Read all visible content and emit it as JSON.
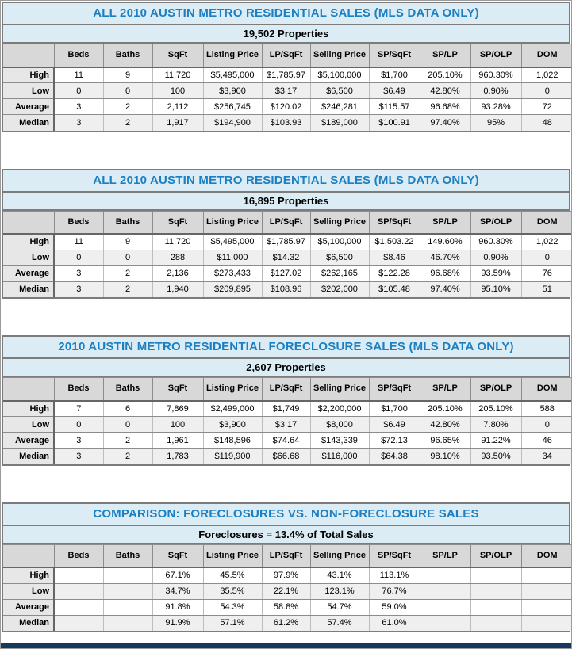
{
  "colors": {
    "title_text": "#1b7fc2",
    "banner_bg": "#dbecf4",
    "header_bg": "#d8d8d8",
    "alt_row_bg": "#efefef",
    "bottom_bar": "#17375d"
  },
  "columns": [
    "",
    "Beds",
    "Baths",
    "SqFt",
    "Listing Price",
    "LP/SqFt",
    "Selling Price",
    "SP/SqFt",
    "SP/LP",
    "SP/OLP",
    "DOM"
  ],
  "row_labels": [
    "High",
    "Low",
    "Average",
    "Median"
  ],
  "tables": [
    {
      "title": "ALL 2010 AUSTIN METRO RESIDENTIAL SALES (MLS DATA ONLY)",
      "subtitle": "19,502 Properties",
      "rows": [
        [
          "11",
          "9",
          "11,720",
          "$5,495,000",
          "$1,785.97",
          "$5,100,000",
          "$1,700",
          "205.10%",
          "960.30%",
          "1,022"
        ],
        [
          "0",
          "0",
          "100",
          "$3,900",
          "$3.17",
          "$6,500",
          "$6.49",
          "42.80%",
          "0.90%",
          "0"
        ],
        [
          "3",
          "2",
          "2,112",
          "$256,745",
          "$120.02",
          "$246,281",
          "$115.57",
          "96.68%",
          "93.28%",
          "72"
        ],
        [
          "3",
          "2",
          "1,917",
          "$194,900",
          "$103.93",
          "$189,000",
          "$100.91",
          "97.40%",
          "95%",
          "48"
        ]
      ]
    },
    {
      "title": "ALL 2010 AUSTIN METRO RESIDENTIAL SALES (MLS DATA ONLY)",
      "subtitle": "16,895 Properties",
      "rows": [
        [
          "11",
          "9",
          "11,720",
          "$5,495,000",
          "$1,785.97",
          "$5,100,000",
          "$1,503.22",
          "149.60%",
          "960.30%",
          "1,022"
        ],
        [
          "0",
          "0",
          "288",
          "$11,000",
          "$14.32",
          "$6,500",
          "$8.46",
          "46.70%",
          "0.90%",
          "0"
        ],
        [
          "3",
          "2",
          "2,136",
          "$273,433",
          "$127.02",
          "$262,165",
          "$122.28",
          "96.68%",
          "93.59%",
          "76"
        ],
        [
          "3",
          "2",
          "1,940",
          "$209,895",
          "$108.96",
          "$202,000",
          "$105.48",
          "97.40%",
          "95.10%",
          "51"
        ]
      ]
    },
    {
      "title": "2010 AUSTIN METRO RESIDENTIAL FORECLOSURE SALES (MLS DATA ONLY)",
      "subtitle": "2,607 Properties",
      "rows": [
        [
          "7",
          "6",
          "7,869",
          "$2,499,000",
          "$1,749",
          "$2,200,000",
          "$1,700",
          "205.10%",
          "205.10%",
          "588"
        ],
        [
          "0",
          "0",
          "100",
          "$3,900",
          "$3.17",
          "$8,000",
          "$6.49",
          "42.80%",
          "7.80%",
          "0"
        ],
        [
          "3",
          "2",
          "1,961",
          "$148,596",
          "$74.64",
          "$143,339",
          "$72.13",
          "96.65%",
          "91.22%",
          "46"
        ],
        [
          "3",
          "2",
          "1,783",
          "$119,900",
          "$66.68",
          "$116,000",
          "$64.38",
          "98.10%",
          "93.50%",
          "34"
        ]
      ]
    },
    {
      "title": "COMPARISON:  FORECLOSURES VS. NON-FORECLOSURE SALES",
      "subtitle": "Foreclosures = 13.4% of Total Sales",
      "rows": [
        [
          "",
          "",
          "67.1%",
          "45.5%",
          "97.9%",
          "43.1%",
          "113.1%",
          "",
          "",
          ""
        ],
        [
          "",
          "",
          "34.7%",
          "35.5%",
          "22.1%",
          "123.1%",
          "76.7%",
          "",
          "",
          ""
        ],
        [
          "",
          "",
          "91.8%",
          "54.3%",
          "58.8%",
          "54.7%",
          "59.0%",
          "",
          "",
          ""
        ],
        [
          "",
          "",
          "91.9%",
          "57.1%",
          "61.2%",
          "57.4%",
          "61.0%",
          "",
          "",
          ""
        ]
      ]
    }
  ]
}
